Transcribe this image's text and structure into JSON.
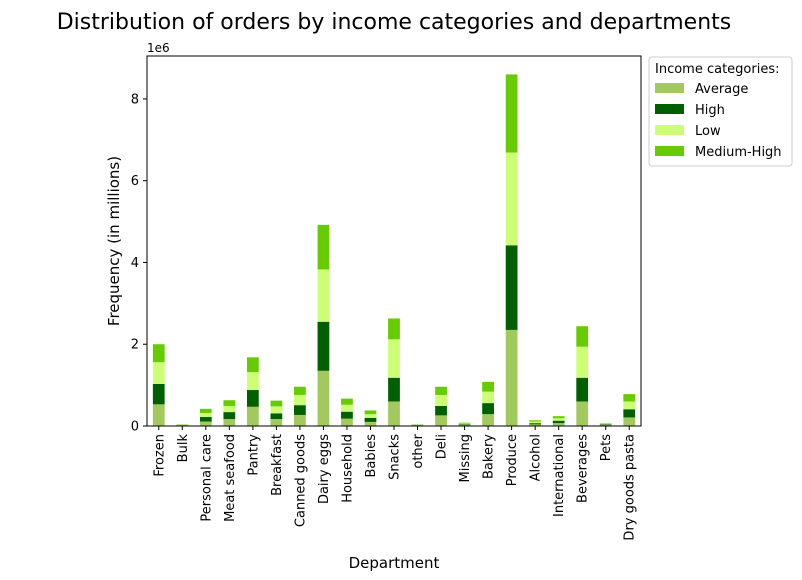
{
  "chart_data": {
    "type": "bar",
    "stacked": true,
    "title": "Distribution of orders by income categories and departments",
    "xlabel": "Department",
    "ylabel": "Frequency (in millions)",
    "y_offset_label": "1e6",
    "ylim": [
      0,
      9050000
    ],
    "yticks": [
      0,
      2000000,
      4000000,
      6000000,
      8000000
    ],
    "ytick_labels": [
      "0",
      "2",
      "4",
      "6",
      "8"
    ],
    "grid": false,
    "legend_title": "Income categories:",
    "legend_position": "outside top-right",
    "categories": [
      "Frozen",
      "Bulk",
      "Personal care",
      "Meat seafood",
      "Pantry",
      "Breakfast",
      "Canned goods",
      "Dairy eggs",
      "Household",
      "Babies",
      "Snacks",
      "other",
      "Deli",
      "Missing",
      "Bakery",
      "Produce",
      "Alcohol",
      "International",
      "Beverages",
      "Pets",
      "Dry goods pasta"
    ],
    "series": [
      {
        "name": "Average",
        "color": "#a2c95e",
        "values": [
          530000,
          10000,
          110000,
          170000,
          470000,
          170000,
          270000,
          1350000,
          180000,
          100000,
          600000,
          10000,
          260000,
          20000,
          290000,
          2350000,
          40000,
          70000,
          600000,
          20000,
          210000
        ]
      },
      {
        "name": "High",
        "color": "#006000",
        "values": [
          500000,
          10000,
          110000,
          170000,
          410000,
          140000,
          240000,
          1200000,
          170000,
          100000,
          580000,
          10000,
          230000,
          20000,
          270000,
          2070000,
          30000,
          60000,
          580000,
          20000,
          200000
        ]
      },
      {
        "name": "Low",
        "color": "#ccff73",
        "values": [
          530000,
          10000,
          100000,
          150000,
          440000,
          170000,
          250000,
          1280000,
          170000,
          90000,
          940000,
          10000,
          270000,
          20000,
          280000,
          2270000,
          40000,
          60000,
          760000,
          20000,
          190000
        ]
      },
      {
        "name": "Medium-High",
        "color": "#66cc00",
        "values": [
          440000,
          10000,
          100000,
          140000,
          360000,
          140000,
          200000,
          1090000,
          150000,
          90000,
          510000,
          10000,
          200000,
          20000,
          240000,
          1910000,
          30000,
          50000,
          500000,
          10000,
          180000
        ]
      }
    ]
  }
}
